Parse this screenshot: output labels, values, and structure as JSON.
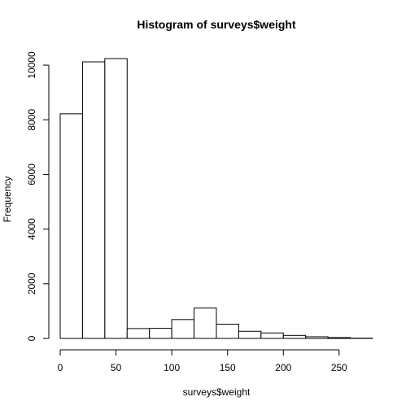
{
  "chart_data": {
    "type": "bar",
    "title": "Histogram of surveys$weight",
    "xlabel": "surveys$weight",
    "ylabel": "Frequency",
    "bin_edges": [
      0,
      20,
      40,
      60,
      80,
      100,
      120,
      140,
      160,
      180,
      200,
      220,
      240,
      260,
      280
    ],
    "values": [
      8220,
      10120,
      10240,
      360,
      370,
      690,
      1110,
      520,
      260,
      200,
      110,
      60,
      30,
      10
    ],
    "xlim": [
      0,
      280
    ],
    "ylim": [
      0,
      10240
    ],
    "x_ticks": [
      0,
      50,
      100,
      150,
      200,
      250
    ],
    "y_ticks": [
      0,
      2000,
      4000,
      6000,
      8000,
      10000
    ],
    "grid": false,
    "colors": {
      "bar_fill": "#ffffff",
      "bar_stroke": "#000000"
    }
  }
}
